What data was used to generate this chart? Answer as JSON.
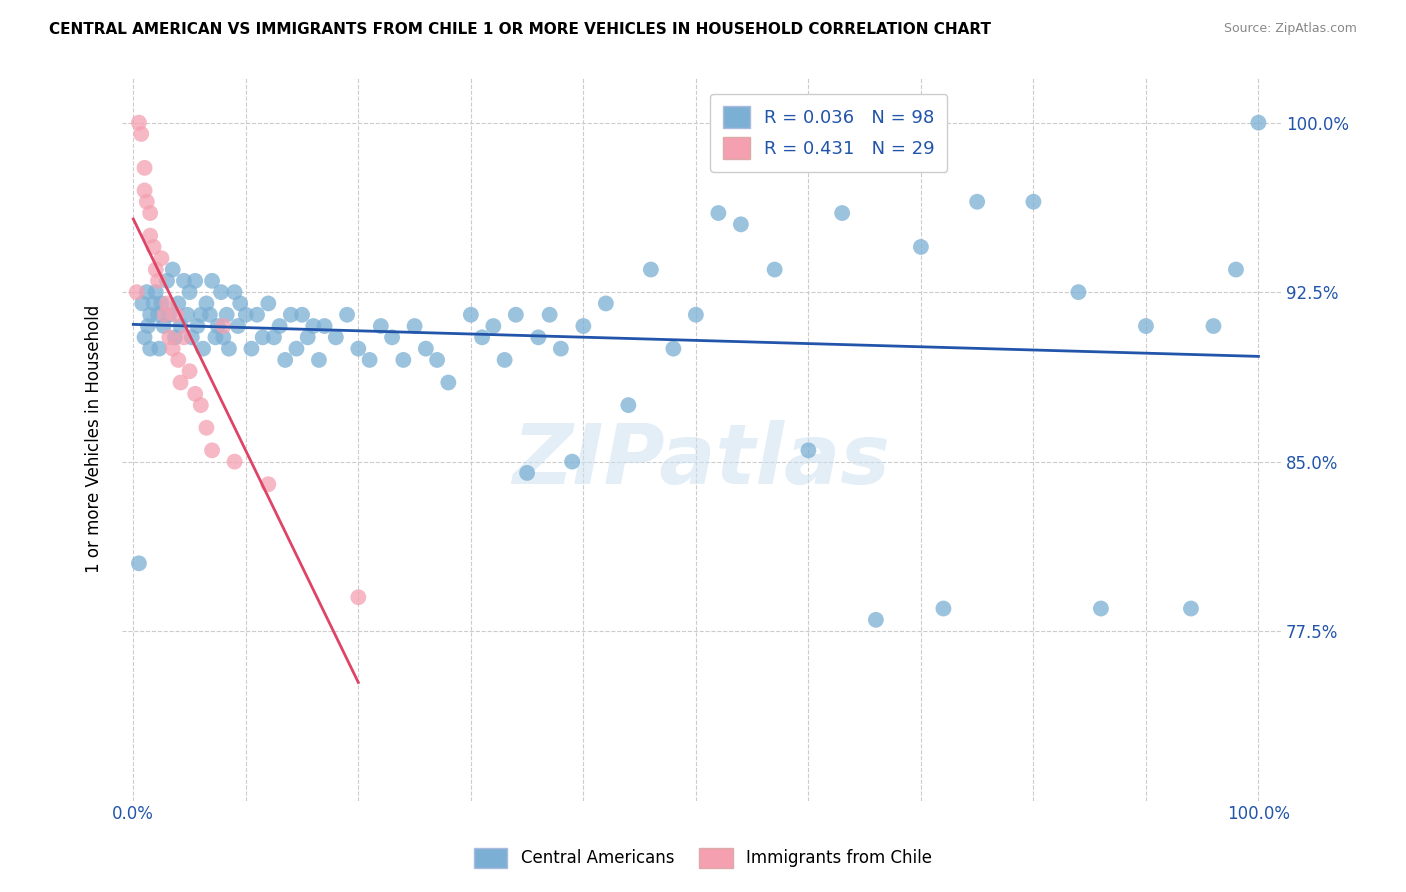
{
  "title": "CENTRAL AMERICAN VS IMMIGRANTS FROM CHILE 1 OR MORE VEHICLES IN HOUSEHOLD CORRELATION CHART",
  "source": "Source: ZipAtlas.com",
  "ylabel": "1 or more Vehicles in Household",
  "legend_blue_label": "Central Americans",
  "legend_pink_label": "Immigrants from Chile",
  "R_blue": 0.036,
  "N_blue": 98,
  "R_pink": 0.431,
  "N_pink": 29,
  "blue_color": "#7bafd4",
  "pink_color": "#f4a0b0",
  "trendline_blue_color": "#2255aa",
  "trendline_pink_color": "#dd4466",
  "watermark": "ZIPatlas",
  "ymin": 70.0,
  "ymax": 102.0,
  "xmin": -0.01,
  "xmax": 1.02,
  "blue_points_x": [
    0.005,
    0.008,
    0.01,
    0.012,
    0.013,
    0.015,
    0.015,
    0.018,
    0.02,
    0.022,
    0.023,
    0.025,
    0.027,
    0.03,
    0.032,
    0.035,
    0.037,
    0.04,
    0.042,
    0.045,
    0.048,
    0.05,
    0.052,
    0.055,
    0.057,
    0.06,
    0.062,
    0.065,
    0.068,
    0.07,
    0.073,
    0.075,
    0.078,
    0.08,
    0.083,
    0.085,
    0.09,
    0.093,
    0.095,
    0.1,
    0.105,
    0.11,
    0.115,
    0.12,
    0.125,
    0.13,
    0.135,
    0.14,
    0.145,
    0.15,
    0.155,
    0.16,
    0.165,
    0.17,
    0.18,
    0.19,
    0.2,
    0.21,
    0.22,
    0.23,
    0.24,
    0.25,
    0.26,
    0.27,
    0.28,
    0.3,
    0.31,
    0.32,
    0.33,
    0.34,
    0.35,
    0.36,
    0.37,
    0.38,
    0.39,
    0.4,
    0.42,
    0.44,
    0.46,
    0.48,
    0.5,
    0.52,
    0.54,
    0.57,
    0.6,
    0.63,
    0.66,
    0.7,
    0.72,
    0.75,
    0.8,
    0.84,
    0.86,
    0.9,
    0.94,
    0.96,
    0.98,
    1.0
  ],
  "blue_points_y": [
    80.5,
    92.0,
    90.5,
    92.5,
    91.0,
    91.5,
    90.0,
    92.0,
    92.5,
    91.5,
    90.0,
    92.0,
    91.0,
    93.0,
    91.5,
    93.5,
    90.5,
    92.0,
    91.0,
    93.0,
    91.5,
    92.5,
    90.5,
    93.0,
    91.0,
    91.5,
    90.0,
    92.0,
    91.5,
    93.0,
    90.5,
    91.0,
    92.5,
    90.5,
    91.5,
    90.0,
    92.5,
    91.0,
    92.0,
    91.5,
    90.0,
    91.5,
    90.5,
    92.0,
    90.5,
    91.0,
    89.5,
    91.5,
    90.0,
    91.5,
    90.5,
    91.0,
    89.5,
    91.0,
    90.5,
    91.5,
    90.0,
    89.5,
    91.0,
    90.5,
    89.5,
    91.0,
    90.0,
    89.5,
    88.5,
    91.5,
    90.5,
    91.0,
    89.5,
    91.5,
    84.5,
    90.5,
    91.5,
    90.0,
    85.0,
    91.0,
    92.0,
    87.5,
    93.5,
    90.0,
    91.5,
    96.0,
    95.5,
    93.5,
    85.5,
    96.0,
    78.0,
    94.5,
    78.5,
    96.5,
    96.5,
    92.5,
    78.5,
    91.0,
    78.5,
    91.0,
    93.5,
    100.0
  ],
  "pink_points_x": [
    0.003,
    0.005,
    0.007,
    0.01,
    0.01,
    0.012,
    0.015,
    0.015,
    0.018,
    0.02,
    0.022,
    0.025,
    0.028,
    0.03,
    0.032,
    0.035,
    0.038,
    0.04,
    0.042,
    0.045,
    0.05,
    0.055,
    0.06,
    0.065,
    0.07,
    0.08,
    0.09,
    0.12,
    0.2
  ],
  "pink_points_y": [
    92.5,
    100.0,
    99.5,
    98.0,
    97.0,
    96.5,
    96.0,
    95.0,
    94.5,
    93.5,
    93.0,
    94.0,
    91.5,
    92.0,
    90.5,
    90.0,
    91.5,
    89.5,
    88.5,
    90.5,
    89.0,
    88.0,
    87.5,
    86.5,
    85.5,
    91.0,
    85.0,
    84.0,
    79.0
  ]
}
